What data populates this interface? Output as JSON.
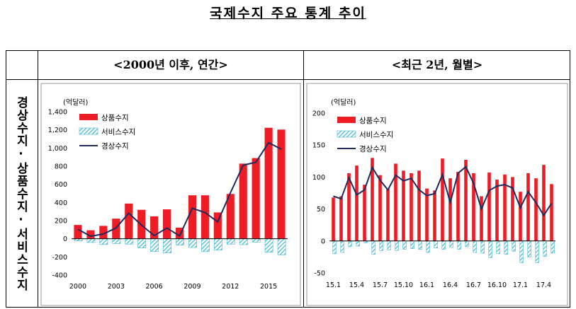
{
  "page_title": "국제수지 주요 통계 추이",
  "column_headers": [
    "<2000년 이후, 연간>",
    "<최근 2년, 월별>"
  ],
  "row_label": "경상수지·상품수지·서비스수지",
  "colors": {
    "goods": "#ee1c25",
    "services": "#3fb8cf",
    "current": "#1f2a5c"
  },
  "chart_data": [
    {
      "type": "bar",
      "unit": "(억달러)",
      "legend": [
        "상품수지",
        "서비스수지",
        "경상수지"
      ],
      "legend_position": "top-left",
      "categories": [
        "2000",
        "2001",
        "2002",
        "2003",
        "2004",
        "2005",
        "2006",
        "2007",
        "2008",
        "2009",
        "2010",
        "2011",
        "2012",
        "2013",
        "2014",
        "2015",
        "2016"
      ],
      "xtick_labels": [
        "2000",
        "2003",
        "2006",
        "2009",
        "2012",
        "2015"
      ],
      "xtick_indices": [
        0,
        3,
        6,
        9,
        12,
        15
      ],
      "ytick_labels": [
        "1,400",
        "1,200",
        "1,000",
        "800",
        "600",
        "400",
        "200",
        "0",
        "-200",
        "-400"
      ],
      "ylim": [
        -400,
        1400
      ],
      "ytick_step": 200,
      "series": [
        {
          "name": "상품수지",
          "type": "bar",
          "values": [
            152,
            94,
            142,
            222,
            388,
            319,
            247,
            324,
            122,
            479,
            479,
            290,
            494,
            828,
            889,
            1223,
            1203
          ]
        },
        {
          "name": "서비스수지",
          "type": "bar",
          "values": [
            -24,
            -41,
            -64,
            -53,
            -59,
            -101,
            -141,
            -156,
            -70,
            -96,
            -142,
            -124,
            -59,
            -65,
            -36,
            -149,
            -177
          ]
        },
        {
          "name": "경상수지",
          "type": "line",
          "values": [
            104,
            28,
            53,
            119,
            282,
            150,
            35,
            118,
            32,
            336,
            288,
            187,
            508,
            811,
            843,
            1059,
            987
          ]
        }
      ]
    },
    {
      "type": "bar",
      "unit": "(억달러)",
      "legend": [
        "상품수지",
        "서비스수지",
        "경상수지"
      ],
      "legend_position": "top-left",
      "categories": [
        "15.1",
        "15.2",
        "15.3",
        "15.4",
        "15.5",
        "15.6",
        "15.7",
        "15.8",
        "15.9",
        "15.10",
        "15.11",
        "15.12",
        "16.1",
        "16.2",
        "16.3",
        "16.4",
        "16.5",
        "16.6",
        "16.7",
        "16.8",
        "16.9",
        "16.10",
        "16.11",
        "16.12",
        "17.1",
        "17.2",
        "17.3",
        "17.4",
        "17.5"
      ],
      "xtick_labels": [
        "15.1",
        "15.4",
        "15.7",
        "15.10",
        "16.1",
        "16.4",
        "16.7",
        "16.10",
        "17.1",
        "17.4"
      ],
      "xtick_indices": [
        0,
        3,
        6,
        9,
        12,
        15,
        18,
        21,
        24,
        27
      ],
      "ytick_labels": [
        "200",
        "150",
        "100",
        "50",
        "0",
        "-50"
      ],
      "ylim": [
        -50,
        200
      ],
      "ytick_step": 50,
      "series": [
        {
          "name": "상품수지",
          "type": "bar",
          "values": [
            68,
            70,
            106,
            118,
            88,
            130,
            103,
            82,
            121,
            110,
            106,
            110,
            82,
            79,
            129,
            98,
            108,
            127,
            106,
            70,
            107,
            96,
            104,
            100,
            77,
            106,
            98,
            119,
            89
          ]
        },
        {
          "name": "서비스수지",
          "type": "bar",
          "values": [
            -20,
            -18,
            -9,
            -8,
            -3,
            -21,
            -15,
            -14,
            -15,
            -13,
            -12,
            -13,
            -18,
            -11,
            -13,
            -10,
            -13,
            -9,
            -18,
            -19,
            -26,
            -20,
            -21,
            -16,
            -34,
            -25,
            -34,
            -24,
            -19
          ]
        },
        {
          "name": "경상수지",
          "type": "line",
          "values": [
            70,
            66,
            99,
            72,
            80,
            115,
            95,
            80,
            103,
            94,
            98,
            80,
            71,
            74,
            104,
            60,
            106,
            116,
            90,
            50,
            79,
            86,
            88,
            83,
            52,
            77,
            60,
            40,
            59
          ]
        }
      ]
    }
  ]
}
